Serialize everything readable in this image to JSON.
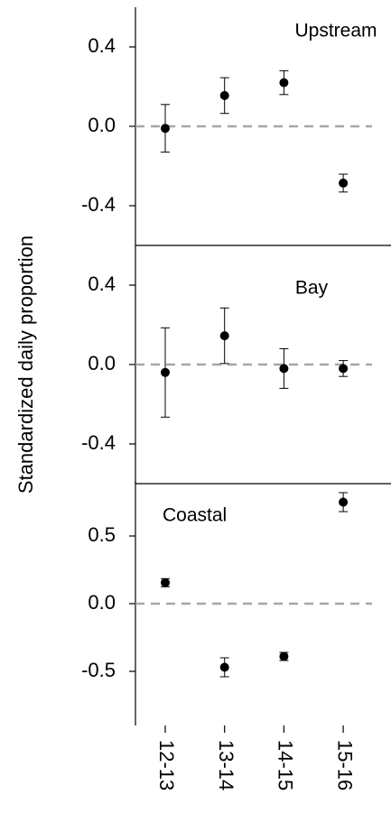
{
  "chart_data": [
    {
      "type": "errorbar",
      "label": "Upstream",
      "values": [
        -0.01,
        0.155,
        0.22,
        -0.286
      ],
      "error": [
        0.12,
        0.09,
        0.06,
        0.045
      ],
      "ylim": [
        -0.6,
        0.6
      ],
      "yticks": [
        {
          "value": 0.4,
          "label": "0.4"
        },
        {
          "value": 0,
          "label": "0.0"
        },
        {
          "value": -0.4,
          "label": "-0.4"
        }
      ],
      "reference_line": 0,
      "color": "#000000"
    },
    {
      "type": "errorbar",
      "label": "Bay",
      "ylabel": "Standardized daily proportion",
      "values": [
        -0.04,
        0.145,
        -0.02,
        -0.02
      ],
      "error": [
        0.225,
        0.14,
        0.1,
        0.04
      ],
      "ylim": [
        -0.6,
        0.6
      ],
      "yticks": [
        {
          "value": 0.4,
          "label": "0.4"
        },
        {
          "value": 0,
          "label": "0.0"
        },
        {
          "value": -0.4,
          "label": "-0.4"
        }
      ],
      "reference_line": 0,
      "color": "#000000"
    },
    {
      "type": "errorbar",
      "label": "Coastal",
      "categories": [
        "12-13",
        "13-14",
        "14-15",
        "15-16"
      ],
      "values": [
        0.155,
        -0.47,
        -0.39,
        0.75
      ],
      "error": [
        0.03,
        0.07,
        0.03,
        0.07
      ],
      "ylim": [
        -0.9,
        0.9
      ],
      "yticks": [
        {
          "value": 0.5,
          "label": "0.5"
        },
        {
          "value": 0,
          "label": "0.0"
        },
        {
          "value": -0.5,
          "label": "-0.5"
        }
      ],
      "reference_line": 0,
      "color": "#000000"
    }
  ]
}
